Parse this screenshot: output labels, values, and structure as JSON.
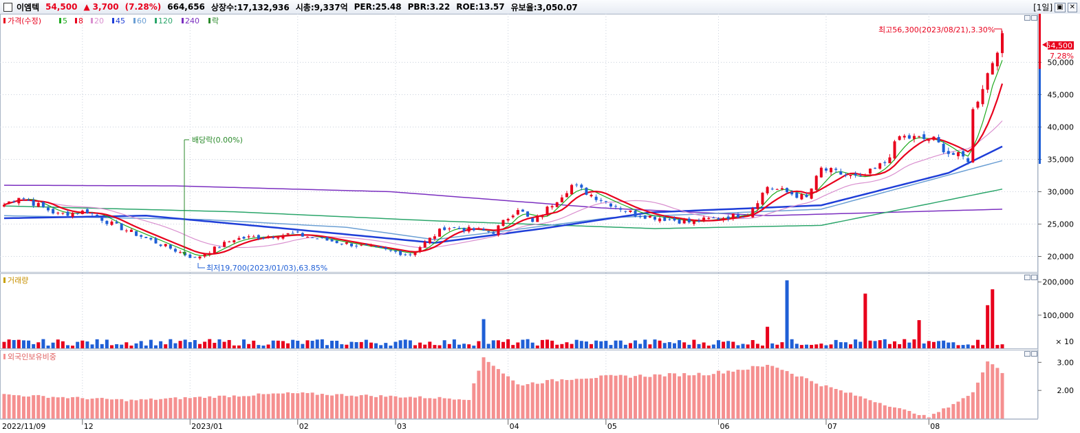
{
  "header": {
    "name": "이엠텍",
    "price": "54,500",
    "change_arrow": "▲",
    "change": "3,700",
    "change_pct": "(7.28%)",
    "volume": "664,656",
    "listed": "상장수:17,132,936",
    "mcap": "시총:9,337억",
    "per": "PER:25.48",
    "pbr": "PBR:3.22",
    "roe": "ROE:13.57",
    "float": "유보율:3,050.07",
    "period_button": "[1일]",
    "restore_button": "▣",
    "close_button": "✕"
  },
  "legend": {
    "price_label": "가격(수정)",
    "ma": [
      {
        "label": "5",
        "color": "#1faa1f"
      },
      {
        "label": "8",
        "color": "#e8001c"
      },
      {
        "label": "20",
        "color": "#d98fcf"
      },
      {
        "label": "45",
        "color": "#1e3ed8"
      },
      {
        "label": "60",
        "color": "#6b9fd4"
      },
      {
        "label": "120",
        "color": "#2aa56a"
      },
      {
        "label": "240",
        "color": "#7b2fc0"
      },
      {
        "label": "락",
        "color": "#2a8a2a"
      }
    ],
    "volume_label": "거래량",
    "foreign_label": "외국인보유비중"
  },
  "annotations": {
    "high": "최고56,300(2023/08/21),3.30%",
    "low": "최저19,700(2023/01/03),63.85%",
    "dividend": "배당락(0.00%)",
    "current_price": "54,500",
    "current_pct": "7.28%"
  },
  "axes": {
    "price_ticks": [
      "50,000",
      "45,000",
      "40,000",
      "35,000",
      "30,000",
      "25,000",
      "20,000"
    ],
    "volume_ticks": [
      "200,000",
      "100,000"
    ],
    "volume_unit": "× 10",
    "foreign_ticks": [
      "3.00",
      "2.00"
    ],
    "x_labels": [
      "2022/11/09",
      "12",
      "2023/01",
      "02",
      "03",
      "04",
      "05",
      "06",
      "07",
      "08"
    ]
  },
  "colors": {
    "up": "#e8001c",
    "down": "#1f5fd6",
    "foreign_bar": "#f59090",
    "grid": "#c8cfdb"
  },
  "chart_data": {
    "type": "candlestick",
    "period": "daily",
    "x_range": [
      "2022-11-09",
      "2023-08-22"
    ],
    "price_ylim": [
      17500,
      57500
    ],
    "price_anchors": [
      {
        "date": "2022-11-09",
        "close": 28000
      },
      {
        "date": "2022-11-14",
        "close": 29300
      },
      {
        "date": "2022-11-24",
        "close": 26500
      },
      {
        "date": "2022-12-02",
        "close": 27000
      },
      {
        "date": "2022-12-09",
        "close": 25000
      },
      {
        "date": "2022-12-20",
        "close": 22800
      },
      {
        "date": "2023-01-03",
        "close": 19700
      },
      {
        "date": "2023-01-13",
        "close": 22700
      },
      {
        "date": "2023-01-31",
        "close": 23500
      },
      {
        "date": "2023-02-09",
        "close": 22500
      },
      {
        "date": "2023-02-23",
        "close": 21200
      },
      {
        "date": "2023-03-06",
        "close": 20300
      },
      {
        "date": "2023-03-15",
        "close": 24500
      },
      {
        "date": "2023-03-29",
        "close": 23800
      },
      {
        "date": "2023-04-05",
        "close": 27500
      },
      {
        "date": "2023-04-10",
        "close": 25200
      },
      {
        "date": "2023-04-20",
        "close": 31000
      },
      {
        "date": "2023-04-28",
        "close": 28800
      },
      {
        "date": "2023-05-09",
        "close": 26500
      },
      {
        "date": "2023-05-24",
        "close": 25300
      },
      {
        "date": "2023-06-09",
        "close": 26600
      },
      {
        "date": "2023-06-15",
        "close": 30800
      },
      {
        "date": "2023-06-27",
        "close": 29000
      },
      {
        "date": "2023-06-30",
        "close": 33500
      },
      {
        "date": "2023-07-12",
        "close": 32000
      },
      {
        "date": "2023-07-19",
        "close": 34500
      },
      {
        "date": "2023-07-24",
        "close": 38500
      },
      {
        "date": "2023-08-02",
        "close": 38000
      },
      {
        "date": "2023-08-07",
        "close": 36000
      },
      {
        "date": "2023-08-11",
        "close": 35000
      },
      {
        "date": "2023-08-14",
        "close": 42500
      },
      {
        "date": "2023-08-18",
        "close": 50200
      },
      {
        "date": "2023-08-22",
        "close": 54500
      }
    ],
    "moving_averages": [
      {
        "name": "240",
        "points": [
          [
            "2022-11-09",
            31000
          ],
          [
            "2022-12-28",
            30900
          ],
          [
            "2023-02-28",
            30000
          ],
          [
            "2023-04-28",
            27500
          ],
          [
            "2023-06-15",
            26300
          ],
          [
            "2023-08-22",
            27300
          ]
        ]
      },
      {
        "name": "120",
        "points": [
          [
            "2022-11-09",
            27800
          ],
          [
            "2023-01-13",
            26900
          ],
          [
            "2023-03-13",
            25500
          ],
          [
            "2023-05-15",
            24300
          ],
          [
            "2023-06-30",
            24800
          ],
          [
            "2023-08-22",
            30400
          ]
        ]
      },
      {
        "name": "60",
        "points": [
          [
            "2022-11-09",
            26300
          ],
          [
            "2023-01-05",
            25700
          ],
          [
            "2023-02-15",
            24500
          ],
          [
            "2023-03-13",
            22600
          ],
          [
            "2023-05-02",
            26000
          ],
          [
            "2023-06-30",
            27300
          ],
          [
            "2023-08-22",
            34800
          ]
        ]
      },
      {
        "name": "45",
        "points": [
          [
            "2022-11-09",
            25900
          ],
          [
            "2022-12-20",
            26300
          ],
          [
            "2023-01-31",
            24200
          ],
          [
            "2023-03-13",
            22100
          ],
          [
            "2023-04-12",
            24300
          ],
          [
            "2023-05-12",
            26800
          ],
          [
            "2023-06-30",
            27900
          ],
          [
            "2023-08-07",
            32900
          ],
          [
            "2023-08-22",
            37000
          ]
        ]
      }
    ],
    "volume_unit": "x10",
    "volume_ylim": [
      0,
      220000
    ],
    "volume_spikes": [
      {
        "date": "2023-03-27",
        "value": 88000
      },
      {
        "date": "2023-06-15",
        "value": 65000
      },
      {
        "date": "2023-06-21",
        "value": 205000
      },
      {
        "date": "2023-07-13",
        "value": 165000
      },
      {
        "date": "2023-07-28",
        "value": 85000
      },
      {
        "date": "2023-08-17",
        "value": 130000
      },
      {
        "date": "2023-08-18",
        "value": 178000
      }
    ],
    "foreign_ratio_ylim": [
      1.0,
      3.4
    ],
    "foreign_ratio_anchors": [
      {
        "date": "2022-11-09",
        "value": 1.85
      },
      {
        "date": "2022-12-15",
        "value": 1.65
      },
      {
        "date": "2023-01-31",
        "value": 1.9
      },
      {
        "date": "2023-03-22",
        "value": 1.7
      },
      {
        "date": "2023-03-27",
        "value": 3.2
      },
      {
        "date": "2023-04-05",
        "value": 2.2
      },
      {
        "date": "2023-04-21",
        "value": 2.45
      },
      {
        "date": "2023-05-30",
        "value": 2.6
      },
      {
        "date": "2023-06-16",
        "value": 2.9
      },
      {
        "date": "2023-06-30",
        "value": 2.2
      },
      {
        "date": "2023-07-21",
        "value": 1.4
      },
      {
        "date": "2023-08-01",
        "value": 1.05
      },
      {
        "date": "2023-08-14",
        "value": 1.9
      },
      {
        "date": "2023-08-17",
        "value": 3.1
      },
      {
        "date": "2023-08-22",
        "value": 2.65
      }
    ]
  }
}
